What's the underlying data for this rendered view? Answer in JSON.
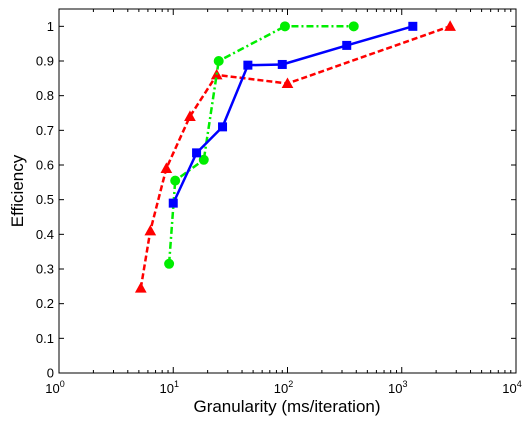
{
  "chart_data": {
    "type": "line",
    "title": "",
    "xlabel": "Granularity (ms/iteration)",
    "ylabel": "Efficiency",
    "xscale": "log",
    "xlim": [
      1,
      10000
    ],
    "ylim": [
      0,
      1.05
    ],
    "xticks": [
      {
        "value": 1,
        "base": "10",
        "exp": "0"
      },
      {
        "value": 10,
        "base": "10",
        "exp": "1"
      },
      {
        "value": 100,
        "base": "10",
        "exp": "2"
      },
      {
        "value": 1000,
        "base": "10",
        "exp": "3"
      },
      {
        "value": 10000,
        "base": "10",
        "exp": "4"
      }
    ],
    "yticks": [
      {
        "value": 0,
        "label": "0"
      },
      {
        "value": 0.1,
        "label": "0.1"
      },
      {
        "value": 0.2,
        "label": "0.2"
      },
      {
        "value": 0.3,
        "label": "0.3"
      },
      {
        "value": 0.4,
        "label": "0.4"
      },
      {
        "value": 0.5,
        "label": "0.5"
      },
      {
        "value": 0.6,
        "label": "0.6"
      },
      {
        "value": 0.7,
        "label": "0.7"
      },
      {
        "value": 0.8,
        "label": "0.8"
      },
      {
        "value": 0.9,
        "label": "0.9"
      },
      {
        "value": 1,
        "label": "1"
      }
    ],
    "grid": false,
    "legend": "none",
    "series": [
      {
        "color": "#ff0000",
        "line_style": "dashed",
        "marker": "triangle",
        "x": [
          5.2,
          6.3,
          8.7,
          14,
          24,
          100,
          2650
        ],
        "y": [
          0.245,
          0.41,
          0.59,
          0.74,
          0.86,
          0.835,
          1.0
        ]
      },
      {
        "color": "#00ee00",
        "line_style": "dash-dot",
        "marker": "circle",
        "x": [
          9.2,
          10.4,
          18.5,
          25,
          95,
          380
        ],
        "y": [
          0.315,
          0.555,
          0.615,
          0.9,
          1.0,
          1.0
        ]
      },
      {
        "color": "#0000ff",
        "line_style": "solid",
        "marker": "square",
        "x": [
          10,
          16,
          27,
          45,
          90,
          330,
          1250
        ],
        "y": [
          0.49,
          0.635,
          0.71,
          0.888,
          0.89,
          0.945,
          1.0
        ]
      }
    ]
  }
}
